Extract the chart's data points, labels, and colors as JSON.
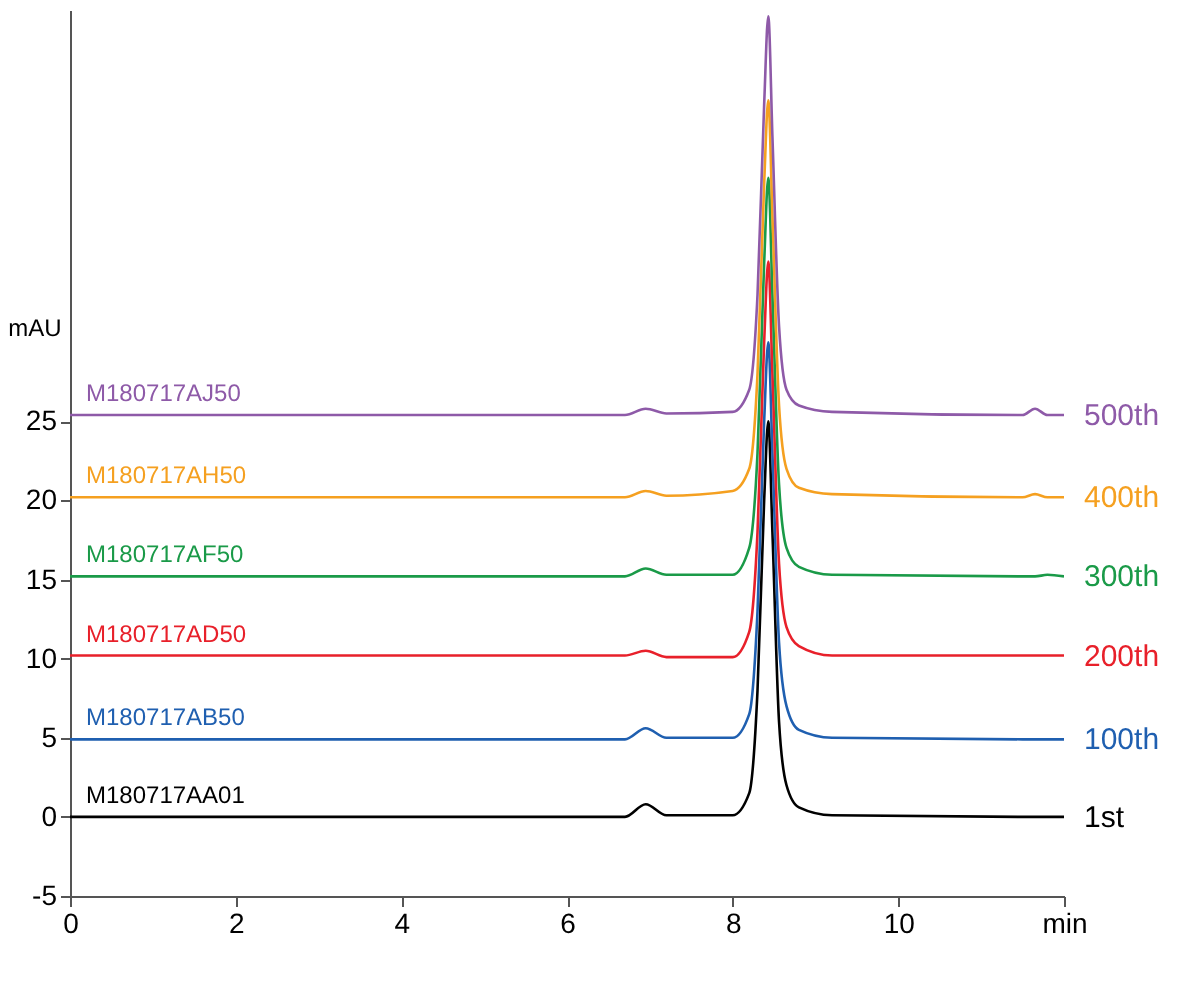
{
  "chart_data": {
    "type": "line",
    "ylabel": "mAU",
    "x": [
      0,
      6.7,
      6.95,
      7.2,
      8.0,
      8.2,
      8.3,
      8.38,
      8.43,
      8.48,
      8.56,
      8.65,
      8.8,
      9.2,
      11.5,
      11.65,
      11.8,
      12
    ],
    "series": [
      {
        "name": "M180717AA01",
        "color": "#000000",
        "values": [
          0,
          0,
          0.8,
          0.1,
          0.1,
          1.5,
          8,
          20,
          25,
          18,
          6,
          2,
          0.6,
          0.1,
          0,
          0,
          0,
          0
        ]
      },
      {
        "name": "M180717AB50",
        "color": "#1f5fb0",
        "values": [
          4.9,
          4.9,
          5.6,
          5.0,
          5.0,
          6.5,
          13,
          25,
          30,
          23,
          11,
          7,
          5.5,
          5.0,
          4.9,
          4.9,
          4.9,
          4.9
        ]
      },
      {
        "name": "M180717AD50",
        "color": "#e8202a",
        "values": [
          10.2,
          10.2,
          10.5,
          10.1,
          10.1,
          11.7,
          18,
          30,
          35.1,
          28,
          16,
          12,
          10.8,
          10.2,
          10.2,
          10.2,
          10.2,
          10.2
        ]
      },
      {
        "name": "M180717AF50",
        "color": "#1a9a48",
        "values": [
          15.2,
          15.2,
          15.7,
          15.3,
          15.3,
          17,
          23,
          35,
          40.4,
          33,
          21,
          17,
          15.8,
          15.3,
          15.2,
          15.2,
          15.3,
          15.2
        ]
      },
      {
        "name": "M180717AH50",
        "color": "#f5a020",
        "values": [
          20.2,
          20.2,
          20.6,
          20.3,
          20.6,
          22,
          28,
          40,
          45.3,
          38,
          26,
          22,
          20.8,
          20.4,
          20.2,
          20.4,
          20.2,
          20.2
        ]
      },
      {
        "name": "M180717AJ50",
        "color": "#8e5aa8",
        "values": [
          25.4,
          25.4,
          25.8,
          25.5,
          25.6,
          27,
          33,
          45,
          50.6,
          43,
          31,
          27,
          26,
          25.6,
          25.4,
          25.8,
          25.4,
          25.4
        ]
      }
    ],
    "annotations": [
      "1st",
      "100th",
      "200th",
      "300th",
      "400th",
      "500th"
    ],
    "xlim": [
      0,
      12
    ],
    "xticks": [
      0,
      2,
      4,
      6,
      8,
      10,
      {
        "value": 12,
        "label": "min"
      }
    ],
    "ylim": [
      -5,
      51
    ],
    "yticks": [
      -5,
      0,
      5,
      10,
      15,
      20,
      25
    ],
    "grid": false,
    "line_style": "solid",
    "marker": "none"
  }
}
